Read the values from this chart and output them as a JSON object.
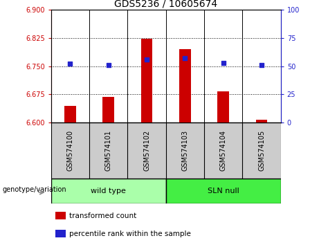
{
  "title": "GDS5236 / 10605674",
  "categories": [
    "GSM574100",
    "GSM574101",
    "GSM574102",
    "GSM574103",
    "GSM574104",
    "GSM574105"
  ],
  "bar_values": [
    6.645,
    6.668,
    6.822,
    6.795,
    6.683,
    6.607
  ],
  "scatter_values": [
    52,
    51,
    56,
    57,
    53,
    51
  ],
  "bar_color": "#cc0000",
  "scatter_color": "#2222cc",
  "bar_bottom": 6.6,
  "ylim_left": [
    6.6,
    6.9
  ],
  "ylim_right": [
    0,
    100
  ],
  "yticks_left": [
    6.6,
    6.675,
    6.75,
    6.825,
    6.9
  ],
  "yticks_right": [
    0,
    25,
    50,
    75,
    100
  ],
  "hlines": [
    6.675,
    6.75,
    6.825
  ],
  "group1_label": "wild type",
  "group2_label": "SLN null",
  "group1_color": "#aaffaa",
  "group2_color": "#44ee44",
  "xlabel_text": "genotype/variation",
  "legend_bar_label": "transformed count",
  "legend_scatter_label": "percentile rank within the sample",
  "title_fontsize": 10,
  "tick_label_fontsize": 7,
  "ytick_left_color": "#cc0000",
  "ytick_right_color": "#2222cc",
  "gray_bg": "#cccccc",
  "bar_width": 0.3
}
